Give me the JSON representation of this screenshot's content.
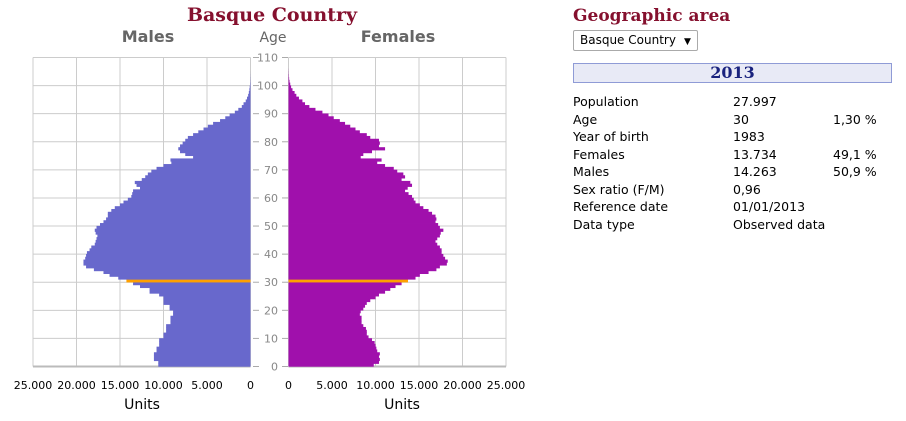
{
  "chart_data": {
    "type": "bar",
    "orientation": "horizontal",
    "title": "Basque Country",
    "left_label": "Males",
    "right_label": "Females",
    "ylabel": "Age",
    "xlabel": "Units",
    "ylim": [
      0,
      110
    ],
    "xlim": [
      0,
      25000
    ],
    "y_ticks": [
      "0",
      "10",
      "20",
      "30",
      "40",
      "50",
      "60",
      "70",
      "80",
      "90",
      "100",
      "110"
    ],
    "x_ticks_left": [
      "25.000",
      "20.000",
      "15.000",
      "10.000",
      "5.000",
      "0"
    ],
    "x_ticks_right": [
      "0",
      "5.000",
      "10.000",
      "15.000",
      "20.000",
      "25.000"
    ],
    "grid": true,
    "highlight_age": 30,
    "colors": {
      "males": "#6868cc",
      "females": "#a010ac",
      "highlight": "#ffa000"
    },
    "ages_start": 0,
    "series": [
      {
        "name": "Males",
        "values": [
          10600,
          10600,
          11100,
          11100,
          11100,
          10800,
          10800,
          10500,
          10500,
          10500,
          10000,
          10000,
          9700,
          9700,
          9700,
          9200,
          9200,
          9200,
          8900,
          8900,
          9300,
          9300,
          10000,
          10000,
          10000,
          10500,
          11600,
          11600,
          12700,
          13500,
          14263,
          15200,
          16200,
          16900,
          18000,
          18900,
          19200,
          19200,
          19000,
          18900,
          18800,
          18500,
          18300,
          17900,
          17800,
          17700,
          17600,
          17800,
          17900,
          17700,
          17300,
          16900,
          16600,
          16400,
          16400,
          16000,
          15600,
          15000,
          14600,
          14100,
          13700,
          13600,
          13500,
          12700,
          13100,
          13300,
          12500,
          12100,
          11800,
          11400,
          10800,
          10000,
          9100,
          9200,
          6600,
          7500,
          8100,
          8300,
          8100,
          7800,
          7500,
          7200,
          6600,
          6000,
          5400,
          4900,
          4300,
          3500,
          2900,
          2400,
          1800,
          1400,
          1000,
          800,
          550,
          400,
          270,
          190,
          130,
          90,
          50,
          30,
          20,
          10,
          5
        ]
      },
      {
        "name": "Females",
        "values": [
          9800,
          10400,
          10500,
          10400,
          10500,
          10200,
          10100,
          10000,
          9900,
          9600,
          9200,
          9000,
          9000,
          8900,
          8600,
          8400,
          8400,
          8400,
          8200,
          8300,
          8600,
          8800,
          9000,
          9400,
          10000,
          10400,
          11100,
          11700,
          12300,
          13000,
          13734,
          14600,
          15100,
          16100,
          17000,
          17400,
          18200,
          18300,
          18000,
          17800,
          17600,
          17600,
          17400,
          17100,
          16900,
          17100,
          17400,
          17500,
          17800,
          17400,
          17200,
          16900,
          17000,
          16900,
          16500,
          16100,
          15500,
          15100,
          14600,
          14400,
          14200,
          13800,
          13400,
          13700,
          14200,
          14000,
          13000,
          13400,
          13200,
          12500,
          12100,
          11100,
          10200,
          10700,
          8300,
          8600,
          9600,
          11100,
          10400,
          10500,
          10400,
          9400,
          9000,
          8200,
          7700,
          7100,
          6500,
          5900,
          5200,
          4600,
          3900,
          3100,
          2400,
          1900,
          1600,
          1200,
          900,
          700,
          460,
          300,
          200,
          120,
          70,
          40,
          20,
          10
        ]
      }
    ]
  },
  "panel": {
    "title": "Geographic area",
    "select_value": "Basque Country",
    "year": "2013",
    "rows": [
      {
        "label": "Population",
        "value": "27.997",
        "pct": ""
      },
      {
        "label": "Age",
        "value": "30",
        "pct": "1,30 %"
      },
      {
        "label": "Year of birth",
        "value": "1983",
        "pct": ""
      },
      {
        "label": "Females",
        "value": "13.734",
        "pct": "49,1 %"
      },
      {
        "label": "Males",
        "value": "14.263",
        "pct": "50,9 %"
      },
      {
        "label": "Sex ratio (F/M)",
        "value": "0,96",
        "pct": ""
      },
      {
        "label": "Reference date",
        "value": "01/01/2013",
        "pct": ""
      },
      {
        "label": "Data type",
        "value": "Observed data",
        "pct": ""
      }
    ]
  }
}
